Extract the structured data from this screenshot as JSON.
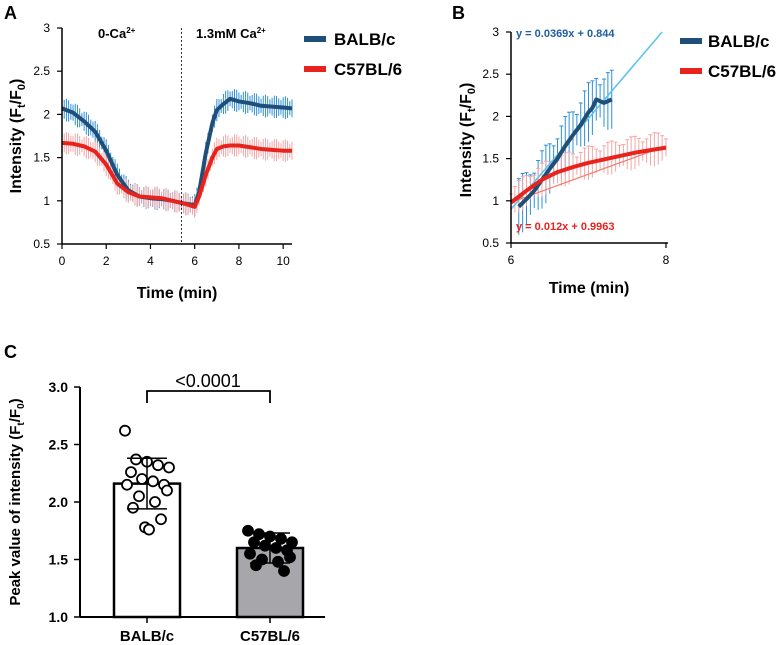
{
  "panel_labels": {
    "a": "A",
    "b": "B",
    "c": "C"
  },
  "colors": {
    "balb": "#1f4e79",
    "balb_err": "#2e8fd8",
    "c57": "#e8231d",
    "c57_err": "#f3a6a6",
    "fitline": "#5ec3ee",
    "bar_c57": "#a7a6ab"
  },
  "chart_data": [
    {
      "id": "A",
      "type": "line",
      "xlabel": "Time (min)",
      "ylabel_main": "Intensity (F",
      "ylabel_sub1": "t",
      "ylabel_mid": "/F",
      "ylabel_sub2": "0",
      "ylabel_end": ")",
      "xlim": [
        0,
        10.4
      ],
      "ylim": [
        0.5,
        3
      ],
      "xticks": [
        "0",
        "2",
        "4",
        "6",
        "8",
        "10"
      ],
      "yticks": [
        "0.5",
        "1",
        "1.5",
        "2",
        "2.5",
        "3"
      ],
      "divider_x": 5.4,
      "annot_left_main": "0-Ca",
      "annot_left_sup": "2+",
      "annot_right_main": "1.3mM Ca",
      "annot_right_sup": "2+",
      "series": [
        {
          "name": "BALB/c",
          "x": [
            0,
            0.5,
            1,
            1.5,
            2,
            2.5,
            3,
            3.5,
            4,
            4.5,
            5,
            5.5,
            6,
            6.2,
            6.5,
            6.8,
            7,
            7.3,
            7.6,
            8,
            8.5,
            9,
            9.5,
            10,
            10.4
          ],
          "y": [
            2.07,
            2.02,
            1.92,
            1.8,
            1.58,
            1.3,
            1.12,
            1.05,
            1.03,
            1.02,
            1.0,
            0.97,
            0.95,
            1.1,
            1.55,
            1.9,
            2.05,
            2.12,
            2.18,
            2.15,
            2.13,
            2.1,
            2.09,
            2.08,
            2.07
          ],
          "err": 0.12
        },
        {
          "name": "C57BL/6",
          "x": [
            0,
            0.5,
            1,
            1.5,
            2,
            2.5,
            3,
            3.5,
            4,
            4.5,
            5,
            5.5,
            6,
            6.2,
            6.5,
            6.8,
            7,
            7.3,
            7.6,
            8,
            8.5,
            9,
            9.5,
            10,
            10.4
          ],
          "y": [
            1.67,
            1.66,
            1.63,
            1.57,
            1.42,
            1.2,
            1.1,
            1.05,
            1.04,
            1.03,
            1.0,
            0.97,
            0.93,
            1.05,
            1.3,
            1.5,
            1.6,
            1.63,
            1.64,
            1.64,
            1.62,
            1.6,
            1.59,
            1.58,
            1.58
          ],
          "err": 0.12
        }
      ],
      "legend": [
        "BALB/c",
        "C57BL/6"
      ]
    },
    {
      "id": "B",
      "type": "line",
      "xlabel": "Time (min)",
      "ylabel_main": "Intensity (F",
      "ylabel_sub1": "t",
      "ylabel_mid": "/F",
      "ylabel_sub2": "0",
      "ylabel_end": ")",
      "xlim": [
        6,
        8
      ],
      "ylim": [
        0.5,
        3
      ],
      "xticks": [
        "6",
        "8"
      ],
      "yticks": [
        "0.5",
        "1",
        "1.5",
        "2",
        "2.5",
        "3"
      ],
      "series": [
        {
          "name": "BALB/c",
          "x": [
            6.1,
            6.2,
            6.3,
            6.4,
            6.5,
            6.6,
            6.7,
            6.8,
            6.9,
            7.0,
            7.05,
            7.1,
            7.15,
            7.2,
            7.3
          ],
          "y": [
            0.93,
            1.02,
            1.12,
            1.25,
            1.38,
            1.5,
            1.65,
            1.78,
            1.9,
            2.05,
            2.1,
            2.2,
            2.18,
            2.16,
            2.2
          ],
          "err": 0.35,
          "fit": "y = 0.0369x + 0.844"
        },
        {
          "name": "C57BL/6",
          "x": [
            6.0,
            6.2,
            6.4,
            6.6,
            6.8,
            7.0,
            7.2,
            7.4,
            7.6,
            7.8,
            8.0
          ],
          "y": [
            0.98,
            1.12,
            1.25,
            1.34,
            1.4,
            1.45,
            1.49,
            1.53,
            1.57,
            1.6,
            1.63
          ],
          "err": 0.2,
          "fit": "y = 0.012x + 0.9963"
        }
      ],
      "legend": [
        "BALB/c",
        "C57BL/6"
      ]
    },
    {
      "id": "C",
      "type": "bar",
      "ylabel_main": "Peak value of intensity (F",
      "ylabel_sub1": "t",
      "ylabel_mid": "/F",
      "ylabel_sub2": "0",
      "ylabel_end": ")",
      "ylim": [
        1.0,
        3.0
      ],
      "yticks": [
        "1.0",
        "1.5",
        "2.0",
        "2.5",
        "3.0"
      ],
      "categories": [
        "BALB/c",
        "C57BL/6"
      ],
      "values": [
        2.16,
        1.6
      ],
      "sd": [
        0.22,
        0.13
      ],
      "significance": "<0.0001",
      "points": [
        [
          2.62,
          2.37,
          2.35,
          2.32,
          2.3,
          2.26,
          2.2,
          2.18,
          2.15,
          2.15,
          2.1,
          2.05,
          2.0,
          1.95,
          1.85,
          1.78,
          1.76
        ],
        [
          1.75,
          1.72,
          1.7,
          1.68,
          1.65,
          1.65,
          1.62,
          1.6,
          1.58,
          1.55,
          1.52,
          1.5,
          1.48,
          1.45,
          1.4
        ]
      ]
    }
  ]
}
